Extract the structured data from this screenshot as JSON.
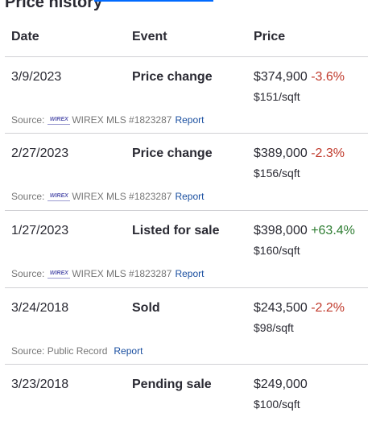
{
  "title": "Price history",
  "columns": {
    "date": "Date",
    "event": "Event",
    "price": "Price"
  },
  "rows": [
    {
      "date": "3/9/2023",
      "event": "Price change",
      "price": "$374,900",
      "change": "-3.6%",
      "sqft": "$151/sqft",
      "source_label": "Source:",
      "logo": "WIREX",
      "source": "WIREX MLS #1823287",
      "report": "Report"
    },
    {
      "date": "2/27/2023",
      "event": "Price change",
      "price": "$389,000",
      "change": "-2.3%",
      "sqft": "$156/sqft",
      "source_label": "Source:",
      "logo": "WIREX",
      "source": "WIREX MLS #1823287",
      "report": "Report"
    },
    {
      "date": "1/27/2023",
      "event": "Listed for sale",
      "price": "$398,000",
      "change": "+63.4%",
      "sqft": "$160/sqft",
      "source_label": "Source:",
      "logo": "WIREX",
      "source": "WIREX MLS #1823287",
      "report": "Report"
    },
    {
      "date": "3/24/2018",
      "event": "Sold",
      "price": "$243,500",
      "change": "-2.2%",
      "sqft": "$98/sqft",
      "source": "Source: Public Record",
      "report": "Report"
    },
    {
      "date": "3/23/2018",
      "event": "Pending sale",
      "price": "$249,000",
      "change": "",
      "sqft": "$100/sqft"
    }
  ]
}
